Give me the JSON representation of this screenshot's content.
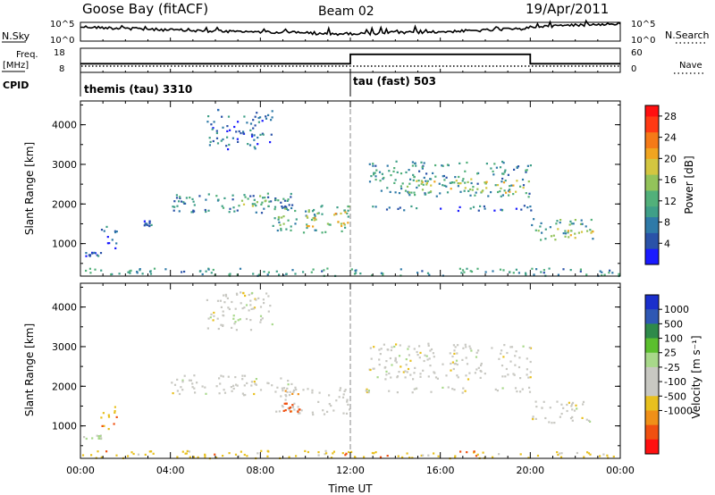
{
  "header": {
    "station": "Goose Bay (fitACF)",
    "beam": "Beam 02",
    "date": "19/Apr/2011"
  },
  "noise_panel": {
    "left_label": "N.Sky",
    "left_ticks": [
      "10^5",
      "10^0"
    ],
    "right_ticks": [
      "10^5",
      "10^0"
    ],
    "right_label": "N.Search",
    "line_style_note": "dotted"
  },
  "freq_panel": {
    "left_label_top": "Freq.",
    "left_label_unit": "[MHz]",
    "left_ticks": [
      "18",
      "8"
    ],
    "right_ticks": [
      "60",
      "0"
    ],
    "right_label": "Nave",
    "cpid_label": "CPID",
    "cpid_segments": [
      {
        "label": "themis (tau) 3310",
        "start_hour": 0,
        "end_hour": 12
      },
      {
        "label": "tau (fast) 503",
        "start_hour": 12,
        "end_hour": 24
      }
    ],
    "nave_trace": [
      {
        "start_hour": 0,
        "end_hour": 12,
        "nave": 21
      },
      {
        "start_hour": 12,
        "end_hour": 20,
        "nave": 46
      },
      {
        "start_hour": 20,
        "end_hour": 24,
        "nave": 21
      }
    ]
  },
  "x_axis": {
    "label": "Time UT",
    "ticks": [
      "00:00",
      "04:00",
      "08:00",
      "12:00",
      "16:00",
      "20:00",
      "00:00"
    ],
    "range_hours": [
      0,
      24
    ]
  },
  "chart_data": [
    {
      "type": "heatmap",
      "name": "power",
      "ylabel": "Slant Range [km]",
      "yticks": [
        1000,
        2000,
        3000,
        4000
      ],
      "ylim": [
        180,
        4600
      ],
      "xlim_hours": [
        0,
        24
      ],
      "colorbar": {
        "label": "Power [dB]",
        "ticks": [
          "28",
          "24",
          "20",
          "16",
          "12",
          "8",
          "4"
        ],
        "range": [
          0,
          30
        ],
        "colors": [
          "#1a1aff",
          "#2a52a8",
          "#2f7aa8",
          "#3f9f88",
          "#52b07a",
          "#93c35a",
          "#d3c640",
          "#f0a520",
          "#f57a18",
          "#ff3a14",
          "#ff1010"
        ]
      },
      "regions": [
        {
          "t": [
            0.0,
            0.9
          ],
          "r": [
            700,
            800
          ],
          "level": 6
        },
        {
          "t": [
            0.8,
            1.6
          ],
          "r": [
            900,
            1500
          ],
          "level": 6
        },
        {
          "t": [
            2.8,
            3.2
          ],
          "r": [
            1450,
            1600
          ],
          "level": 6
        },
        {
          "t": [
            4.0,
            9.5
          ],
          "r": [
            1800,
            2300
          ],
          "level": 8
        },
        {
          "t": [
            6.0,
            9.5
          ],
          "r": [
            1950,
            2250
          ],
          "level": 14
        },
        {
          "t": [
            8.5,
            12.0
          ],
          "r": [
            1300,
            2000
          ],
          "level": 12
        },
        {
          "t": [
            10.0,
            12.0
          ],
          "r": [
            1450,
            1850
          ],
          "level": 20
        },
        {
          "t": [
            5.5,
            8.5
          ],
          "r": [
            3400,
            4400
          ],
          "level": 6
        },
        {
          "t": [
            12.8,
            20.0
          ],
          "r": [
            2200,
            3100
          ],
          "level": 10
        },
        {
          "t": [
            14.5,
            20.0
          ],
          "r": [
            2300,
            2650
          ],
          "level": 18
        },
        {
          "t": [
            12.5,
            20.0
          ],
          "r": [
            1850,
            2000
          ],
          "level": 6
        },
        {
          "t": [
            20.0,
            22.8
          ],
          "r": [
            1100,
            1650
          ],
          "level": 12
        },
        {
          "t": [
            21.0,
            22.8
          ],
          "r": [
            1150,
            1400
          ],
          "level": 18
        },
        {
          "t": [
            0.0,
            24.0
          ],
          "r": [
            180,
            400
          ],
          "level": 10
        }
      ]
    },
    {
      "type": "heatmap",
      "name": "velocity",
      "ylabel": "Slant Range [km]",
      "yticks": [
        1000,
        2000,
        3000,
        4000
      ],
      "ylim": [
        180,
        4600
      ],
      "xlim_hours": [
        0,
        24
      ],
      "colorbar": {
        "label": "Velocity [m s⁻¹]",
        "ticks": [
          "1000",
          "500",
          "100",
          "25",
          "-25",
          "-100",
          "-500",
          "-1000"
        ],
        "bins": [
          "#1a2fcc",
          "#2f58b4",
          "#2e8a4a",
          "#5bbf2e",
          "#a8d88a",
          "#c8c8c2",
          "#c8c8c2",
          "#e8c01e",
          "#f09018",
          "#f05010",
          "#ff1010"
        ]
      },
      "regions": [
        {
          "t": [
            0.0,
            0.9
          ],
          "r": [
            700,
            800
          ],
          "bin": 4
        },
        {
          "t": [
            0.8,
            1.6
          ],
          "r": [
            900,
            1500
          ],
          "bin": 7
        },
        {
          "t": [
            4.0,
            9.5
          ],
          "r": [
            1800,
            2300
          ],
          "bin": 5
        },
        {
          "t": [
            8.5,
            12.0
          ],
          "r": [
            1300,
            2000
          ],
          "bin": 6
        },
        {
          "t": [
            9.0,
            9.8
          ],
          "r": [
            1350,
            1600
          ],
          "bin": 9
        },
        {
          "t": [
            5.5,
            8.5
          ],
          "r": [
            3400,
            4400
          ],
          "bin": 5
        },
        {
          "t": [
            12.8,
            20.0
          ],
          "r": [
            2200,
            3100
          ],
          "bin": 5
        },
        {
          "t": [
            12.5,
            20.0
          ],
          "r": [
            1850,
            2000
          ],
          "bin": 5
        },
        {
          "t": [
            20.0,
            22.8
          ],
          "r": [
            1100,
            1650
          ],
          "bin": 5
        },
        {
          "t": [
            0.0,
            24.0
          ],
          "r": [
            180,
            400
          ],
          "bin": 7
        }
      ]
    }
  ]
}
